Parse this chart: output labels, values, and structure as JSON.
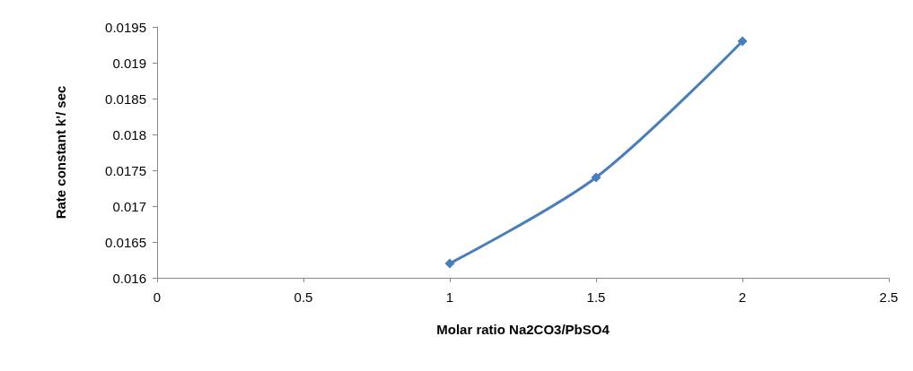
{
  "chart_data": {
    "type": "line",
    "xlabel": "Molar ratio Na2CO3/PbSO4",
    "ylabel": "Rate constant k'/ sec",
    "x": [
      1,
      1.5,
      2
    ],
    "series": [
      {
        "color": "#4a7ebb",
        "values": [
          0.0162,
          0.0174,
          0.0193
        ]
      }
    ],
    "xlim": [
      0,
      2.5
    ],
    "xticks": [
      0,
      0.5,
      1,
      1.5,
      2,
      2.5
    ],
    "ylim": [
      0.016,
      0.0195
    ],
    "yticks": [
      0.016,
      0.0165,
      0.017,
      0.0175,
      0.018,
      0.0185,
      0.019,
      0.0195
    ],
    "grid": false,
    "marker": "diamond",
    "line_style": "solid"
  }
}
